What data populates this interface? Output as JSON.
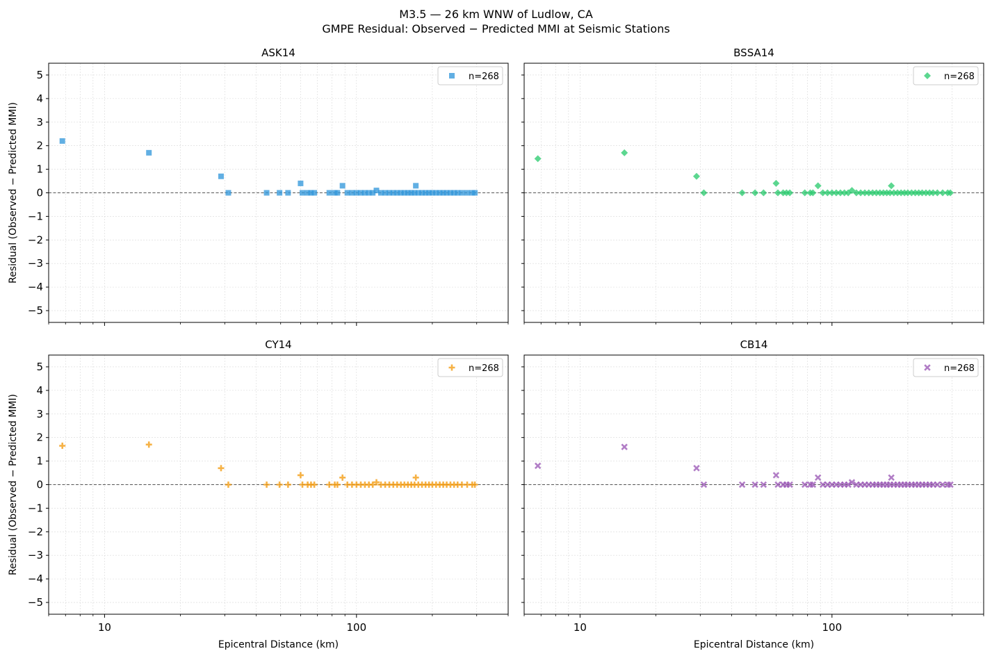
{
  "figure": {
    "title_line1": "M3.5 — 26 km WNW of Ludlow, CA",
    "title_line2": "GMPE Residual: Observed − Predicted MMI at Seismic Stations"
  },
  "chart_data": [
    {
      "type": "scatter",
      "title": "ASK14",
      "xlabel": "",
      "ylabel": "Residual (Observed − Predicted MMI)",
      "x_scale": "log",
      "xlim": [
        6,
        400
      ],
      "ylim": [
        -5.5,
        5.5
      ],
      "x_ticks": [
        10,
        100
      ],
      "y_ticks": [
        -5,
        -4,
        -3,
        -2,
        -1,
        0,
        1,
        2,
        3,
        4,
        5
      ],
      "grid": true,
      "reference_line_y": 0,
      "legend_position": "top-right",
      "series": [
        {
          "name": "n=268",
          "marker": "square",
          "color": "#3498db",
          "x": [
            6.8,
            15,
            29,
            31,
            44,
            49.5,
            53.5,
            60,
            61,
            64,
            66,
            68,
            78,
            82,
            84,
            88,
            92,
            96,
            100,
            104,
            108,
            112,
            116,
            120,
            125,
            130,
            135,
            140,
            145,
            150,
            155,
            160,
            165,
            170,
            172,
            176,
            182,
            188,
            194,
            200,
            207,
            214,
            221,
            228,
            236,
            244,
            252,
            262,
            275,
            288,
            295
          ],
          "y": [
            2.2,
            1.7,
            0.7,
            0,
            0,
            0,
            0,
            0.4,
            0,
            0,
            0,
            0,
            0,
            0,
            0,
            0.3,
            0,
            0,
            0,
            0,
            0,
            0,
            0,
            0.1,
            0,
            0,
            0,
            0,
            0,
            0,
            0,
            0,
            0,
            0,
            0.3,
            0,
            0,
            0,
            0,
            0,
            0,
            0,
            0,
            0,
            0,
            0,
            0,
            0,
            0,
            0,
            0
          ]
        }
      ]
    },
    {
      "type": "scatter",
      "title": "BSSA14",
      "xlabel": "",
      "ylabel": "",
      "x_scale": "log",
      "xlim": [
        6,
        400
      ],
      "ylim": [
        -5.5,
        5.5
      ],
      "x_ticks": [
        10,
        100
      ],
      "y_ticks": [
        -5,
        -4,
        -3,
        -2,
        -1,
        0,
        1,
        2,
        3,
        4,
        5
      ],
      "grid": true,
      "reference_line_y": 0,
      "legend_position": "top-right",
      "series": [
        {
          "name": "n=268",
          "marker": "diamond",
          "color": "#2ecc71",
          "x": [
            6.8,
            15,
            29,
            31,
            44,
            49.5,
            53.5,
            60,
            61,
            64,
            66,
            68,
            78,
            82,
            84,
            88,
            92,
            96,
            100,
            104,
            108,
            112,
            116,
            120,
            125,
            130,
            135,
            140,
            145,
            150,
            155,
            160,
            165,
            170,
            172,
            176,
            182,
            188,
            194,
            200,
            207,
            214,
            221,
            228,
            236,
            244,
            252,
            262,
            275,
            288,
            295
          ],
          "y": [
            1.45,
            1.7,
            0.7,
            0,
            0,
            0,
            0,
            0.4,
            0,
            0,
            0,
            0,
            0,
            0,
            0,
            0.3,
            0,
            0,
            0,
            0,
            0,
            0,
            0,
            0.1,
            0,
            0,
            0,
            0,
            0,
            0,
            0,
            0,
            0,
            0,
            0.3,
            0,
            0,
            0,
            0,
            0,
            0,
            0,
            0,
            0,
            0,
            0,
            0,
            0,
            0,
            0,
            0
          ]
        }
      ]
    },
    {
      "type": "scatter",
      "title": "CY14",
      "xlabel": "Epicentral Distance (km)",
      "ylabel": "Residual (Observed − Predicted MMI)",
      "x_scale": "log",
      "xlim": [
        6,
        400
      ],
      "ylim": [
        -5.5,
        5.5
      ],
      "x_ticks": [
        10,
        100
      ],
      "y_ticks": [
        -5,
        -4,
        -3,
        -2,
        -1,
        0,
        1,
        2,
        3,
        4,
        5
      ],
      "grid": true,
      "reference_line_y": 0,
      "legend_position": "top-right",
      "series": [
        {
          "name": "n=268",
          "marker": "plus",
          "color": "#f39c12",
          "x": [
            6.8,
            15,
            29,
            31,
            44,
            49.5,
            53.5,
            60,
            61,
            64,
            66,
            68,
            78,
            82,
            84,
            88,
            92,
            96,
            100,
            104,
            108,
            112,
            116,
            120,
            125,
            130,
            135,
            140,
            145,
            150,
            155,
            160,
            165,
            170,
            172,
            176,
            182,
            188,
            194,
            200,
            207,
            214,
            221,
            228,
            236,
            244,
            252,
            262,
            275,
            288,
            295
          ],
          "y": [
            1.65,
            1.7,
            0.7,
            0,
            0,
            0,
            0,
            0.4,
            0,
            0,
            0,
            0,
            0,
            0,
            0,
            0.3,
            0,
            0,
            0,
            0,
            0,
            0,
            0,
            0.1,
            0,
            0,
            0,
            0,
            0,
            0,
            0,
            0,
            0,
            0,
            0.3,
            0,
            0,
            0,
            0,
            0,
            0,
            0,
            0,
            0,
            0,
            0,
            0,
            0,
            0,
            0,
            0
          ]
        }
      ]
    },
    {
      "type": "scatter",
      "title": "CB14",
      "xlabel": "Epicentral Distance (km)",
      "ylabel": "",
      "x_scale": "log",
      "xlim": [
        6,
        400
      ],
      "ylim": [
        -5.5,
        5.5
      ],
      "x_ticks": [
        10,
        100
      ],
      "y_ticks": [
        -5,
        -4,
        -3,
        -2,
        -1,
        0,
        1,
        2,
        3,
        4,
        5
      ],
      "grid": true,
      "reference_line_y": 0,
      "legend_position": "top-right",
      "series": [
        {
          "name": "n=268",
          "marker": "x",
          "color": "#9b59b6",
          "x": [
            6.8,
            15,
            29,
            31,
            44,
            49.5,
            53.5,
            60,
            61,
            64,
            66,
            68,
            78,
            82,
            84,
            88,
            92,
            96,
            100,
            104,
            108,
            112,
            116,
            120,
            125,
            130,
            135,
            140,
            145,
            150,
            155,
            160,
            165,
            170,
            172,
            176,
            182,
            188,
            194,
            200,
            207,
            214,
            221,
            228,
            236,
            244,
            252,
            262,
            275,
            288,
            295
          ],
          "y": [
            0.8,
            1.6,
            0.7,
            0,
            0,
            0,
            0,
            0.4,
            0,
            0,
            0,
            0,
            0,
            0,
            0,
            0.3,
            0,
            0,
            0,
            0,
            0,
            0,
            0,
            0.1,
            0,
            0,
            0,
            0,
            0,
            0,
            0,
            0,
            0,
            0,
            0.3,
            0,
            0,
            0,
            0,
            0,
            0,
            0,
            0,
            0,
            0,
            0,
            0,
            0,
            0,
            0,
            0
          ]
        }
      ]
    }
  ]
}
